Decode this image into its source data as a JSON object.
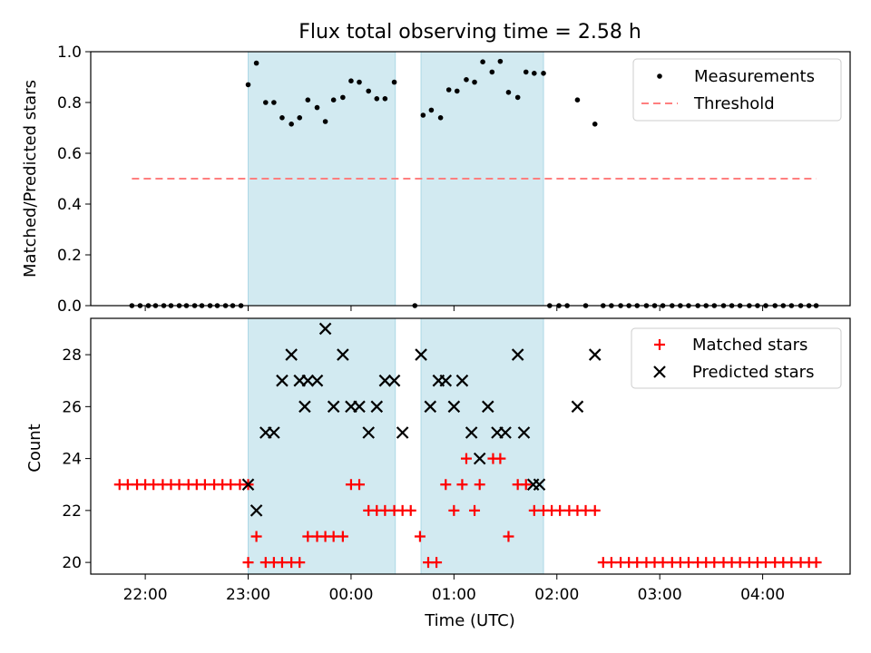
{
  "title": "Flux total observing time = 2.58 h",
  "colors": {
    "shade": "#add8e6",
    "measure": "#000000",
    "threshold": "#ff7f7f",
    "matched": "#ff0000",
    "predicted": "#000000"
  },
  "chart_data": [
    {
      "type": "scatter",
      "ylabel": "Matched/Predicted stars",
      "ylim": [
        0,
        1.0
      ],
      "yticks": [
        "0.0",
        "0.2",
        "0.4",
        "0.6",
        "0.8",
        "1.0"
      ],
      "xlim_hours": [
        21.47,
        28.85
      ],
      "legend": {
        "position": "top-right",
        "measurements": "Measurements",
        "threshold": "Threshold"
      },
      "threshold": {
        "value": 0.5,
        "x_start": 21.87,
        "x_end": 28.52
      },
      "observing_windows": [
        [
          23.0,
          24.43
        ],
        [
          24.68,
          25.87
        ]
      ],
      "x": [
        21.87,
        21.95,
        22.03,
        22.1,
        22.18,
        22.25,
        22.33,
        22.4,
        22.48,
        22.55,
        22.63,
        22.7,
        22.78,
        22.85,
        22.93,
        23.0,
        23.08,
        23.17,
        23.25,
        23.33,
        23.42,
        23.5,
        23.58,
        23.67,
        23.75,
        23.83,
        23.92,
        24.0,
        24.08,
        24.17,
        24.25,
        24.33,
        24.42,
        24.62,
        24.7,
        24.78,
        24.87,
        24.95,
        25.03,
        25.12,
        25.2,
        25.28,
        25.37,
        25.45,
        25.53,
        25.62,
        25.7,
        25.78,
        25.87,
        25.93,
        26.02,
        26.1,
        26.2,
        26.28,
        26.37,
        26.45,
        26.53,
        26.62,
        26.7,
        26.78,
        26.87,
        26.95,
        27.03,
        27.12,
        27.2,
        27.28,
        27.37,
        27.45,
        27.53,
        27.62,
        27.7,
        27.78,
        27.87,
        27.95,
        28.03,
        28.12,
        28.2,
        28.28,
        28.37,
        28.45,
        28.52
      ],
      "y": [
        0,
        0,
        0,
        0,
        0,
        0,
        0,
        0,
        0,
        0,
        0,
        0,
        0,
        0,
        0,
        0.87,
        0.955,
        0.8,
        0.8,
        0.74,
        0.715,
        0.74,
        0.81,
        0.78,
        0.725,
        0.81,
        0.82,
        0.885,
        0.88,
        0.845,
        0.815,
        0.815,
        0.88,
        0,
        0.75,
        0.77,
        0.74,
        0.85,
        0.845,
        0.89,
        0.88,
        0.96,
        0.92,
        0.962,
        0.84,
        0.82,
        0.92,
        0.915,
        0.915,
        0,
        0,
        0,
        0.81,
        0,
        0.715,
        0,
        0,
        0,
        0,
        0,
        0,
        0,
        0,
        0,
        0,
        0,
        0,
        0,
        0,
        0,
        0,
        0,
        0,
        0,
        0,
        0,
        0,
        0,
        0,
        0,
        0
      ]
    },
    {
      "type": "scatter",
      "xlabel": "Time (UTC)",
      "ylabel": "Count",
      "ylim": [
        19.55,
        29.4
      ],
      "yticks": [
        "20",
        "22",
        "24",
        "26",
        "28"
      ],
      "xticks": [
        "22:00",
        "23:00",
        "00:00",
        "01:00",
        "02:00",
        "03:00",
        "04:00"
      ],
      "xlim_hours": [
        21.47,
        28.85
      ],
      "legend": {
        "position": "top-right",
        "matched": "Matched stars",
        "predicted": "Predicted stars"
      },
      "observing_windows": [
        [
          23.0,
          24.43
        ],
        [
          24.68,
          25.87
        ]
      ],
      "matched": {
        "x": [
          21.75,
          21.83,
          21.92,
          22.0,
          22.08,
          22.17,
          22.25,
          22.33,
          22.42,
          22.5,
          22.58,
          22.67,
          22.75,
          22.83,
          22.92,
          23.0,
          23.0,
          23.08,
          23.17,
          23.25,
          23.33,
          23.42,
          23.5,
          23.58,
          23.67,
          23.75,
          23.83,
          23.92,
          24.0,
          24.08,
          24.17,
          24.25,
          24.33,
          24.42,
          24.5,
          24.58,
          24.67,
          24.75,
          24.83,
          24.92,
          25.0,
          25.08,
          25.12,
          25.2,
          25.25,
          25.38,
          25.45,
          25.53,
          25.62,
          25.7,
          25.78,
          25.87,
          25.95,
          26.03,
          26.12,
          26.2,
          26.28,
          26.37,
          26.45,
          26.53,
          26.62,
          26.7,
          26.78,
          26.87,
          26.95,
          27.03,
          27.12,
          27.2,
          27.28,
          27.37,
          27.45,
          27.53,
          27.62,
          27.7,
          27.78,
          27.87,
          27.95,
          28.03,
          28.12,
          28.2,
          28.28,
          28.37,
          28.45,
          28.52
        ],
        "y": [
          23,
          23,
          23,
          23,
          23,
          23,
          23,
          23,
          23,
          23,
          23,
          23,
          23,
          23,
          23,
          23,
          20,
          21,
          20,
          20,
          20,
          20,
          20,
          21,
          21,
          21,
          21,
          21,
          23,
          23,
          22,
          22,
          22,
          22,
          22,
          22,
          21,
          20,
          20,
          23,
          22,
          23,
          24,
          22,
          23,
          24,
          24,
          21,
          23,
          23,
          22,
          22,
          22,
          22,
          22,
          22,
          22,
          22,
          20,
          20,
          20,
          20,
          20,
          20,
          20,
          20,
          20,
          20,
          20,
          20,
          20,
          20,
          20,
          20,
          20,
          20,
          20,
          20,
          20,
          20,
          20,
          20,
          20,
          20
        ]
      },
      "predicted": {
        "x": [
          23.0,
          23.08,
          23.17,
          23.25,
          23.33,
          23.42,
          23.5,
          23.55,
          23.58,
          23.67,
          23.75,
          23.83,
          23.92,
          24.0,
          24.08,
          24.17,
          24.25,
          24.33,
          24.42,
          24.5,
          24.68,
          24.77,
          24.85,
          24.92,
          25.0,
          25.08,
          25.17,
          25.25,
          25.33,
          25.42,
          25.5,
          25.62,
          25.68,
          25.77,
          25.83,
          26.2,
          26.37
        ],
        "y": [
          23,
          22,
          25,
          25,
          27,
          28,
          27,
          26,
          27,
          27,
          29,
          26,
          28,
          26,
          26,
          25,
          26,
          27,
          27,
          25,
          28,
          26,
          27,
          27,
          26,
          27,
          25,
          24,
          26,
          25,
          25,
          28,
          25,
          23,
          23,
          26,
          28
        ]
      }
    }
  ]
}
